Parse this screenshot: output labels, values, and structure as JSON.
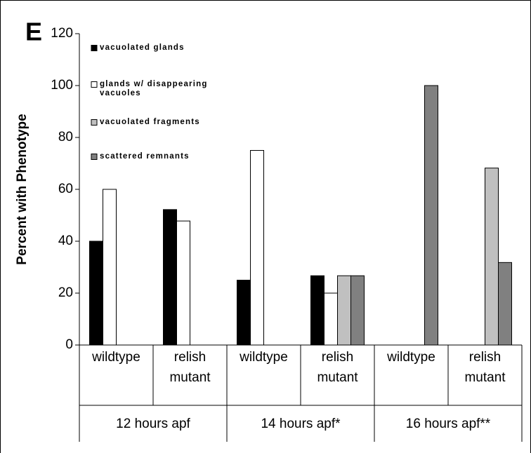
{
  "chart_data": {
    "type": "bar",
    "panel_label": "E",
    "y_label": "Percent with Phenotype",
    "groups": [
      "12 hours apf",
      "14 hours apf*",
      "16 hours apf**"
    ],
    "categories": [
      "wildtype",
      "relish mutant",
      "wildtype",
      "relish mutant",
      "wildtype",
      "relish mutant"
    ],
    "series": [
      {
        "name": "vacuolated glands",
        "color": "#000000",
        "values": [
          40,
          52.2,
          25,
          26.7,
          0,
          0
        ]
      },
      {
        "name": "glands w/ disappearing vacuoles",
        "color": "#ffffff",
        "values": [
          60,
          47.8,
          75,
          20,
          0,
          0
        ]
      },
      {
        "name": "vacuolated fragments",
        "color": "#c0c0c0",
        "values": [
          0,
          0,
          0,
          26.7,
          0,
          68.2
        ]
      },
      {
        "name": "scattered remnants",
        "color": "#808080",
        "values": [
          0,
          0,
          0,
          26.7,
          100,
          31.8
        ]
      }
    ],
    "ylim": [
      0,
      120
    ],
    "yticks": [
      0,
      20,
      40,
      60,
      80,
      100,
      120
    ],
    "grid": false
  }
}
